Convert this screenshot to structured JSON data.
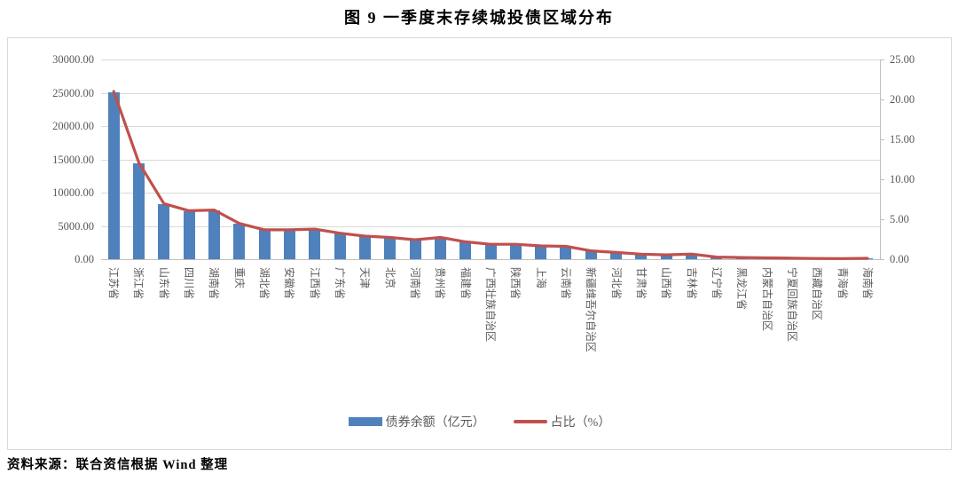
{
  "title": "图 9  一季度末存续城投债区域分布",
  "source_note": "资料来源：联合资信根据 Wind 整理",
  "legend": {
    "bar_label": "债券余额（亿元）",
    "line_label": "占比（%）"
  },
  "colors": {
    "bar": "#4f81bd",
    "line": "#c0504d",
    "grid": "#d9d9d9",
    "axis_text": "#595959"
  },
  "left_axis": {
    "ticks": [
      "30000.00",
      "25000.00",
      "20000.00",
      "15000.00",
      "10000.00",
      "5000.00",
      "0.00"
    ],
    "min": 0,
    "max": 30000
  },
  "right_axis": {
    "ticks": [
      "25.00",
      "20.00",
      "15.00",
      "10.00",
      "5.00",
      "0.00"
    ],
    "min": 0,
    "max": 25
  },
  "chart_data": {
    "type": "bar",
    "subtype": "bar+line combo, dual axis",
    "title": "图 9  一季度末存续城投债区域分布",
    "categories": [
      "江苏省",
      "浙江省",
      "山东省",
      "四川省",
      "湖南省",
      "重庆",
      "湖北省",
      "安徽省",
      "江西省",
      "广东省",
      "天津",
      "北京",
      "河南省",
      "贵州省",
      "福建省",
      "广西壮族自治区",
      "陕西省",
      "上海",
      "云南省",
      "新疆维吾尔自治区",
      "河北省",
      "甘肃省",
      "山西省",
      "吉林省",
      "辽宁省",
      "黑龙江省",
      "内蒙古自治区",
      "宁夏回族自治区",
      "西藏自治区",
      "青海省",
      "海南省"
    ],
    "series": [
      {
        "name": "债券余额（亿元）",
        "type": "bar",
        "axis": "left",
        "color": "#4f81bd",
        "values": [
          25100,
          14450,
          8300,
          7250,
          7350,
          5350,
          4400,
          4400,
          4500,
          3900,
          3450,
          3250,
          2900,
          3250,
          2600,
          2230,
          2230,
          2000,
          1920,
          1250,
          1000,
          750,
          650,
          780,
          320,
          250,
          200,
          150,
          110,
          100,
          130
        ]
      },
      {
        "name": "占比（%）",
        "type": "line",
        "axis": "right",
        "color": "#c0504d",
        "values": [
          21.0,
          12.09,
          6.95,
          6.07,
          6.15,
          4.48,
          3.68,
          3.68,
          3.77,
          3.26,
          2.89,
          2.72,
          2.43,
          2.72,
          2.18,
          1.87,
          1.87,
          1.67,
          1.61,
          1.05,
          0.84,
          0.63,
          0.54,
          0.65,
          0.27,
          0.21,
          0.17,
          0.13,
          0.09,
          0.08,
          0.11
        ]
      }
    ],
    "left_ylim": [
      0,
      30000
    ],
    "right_ylim": [
      0,
      25
    ],
    "grid": true,
    "legend_position": "bottom",
    "xlabel": "",
    "ylabel_left": "债券余额（亿元）",
    "ylabel_right": "占比（%）"
  }
}
